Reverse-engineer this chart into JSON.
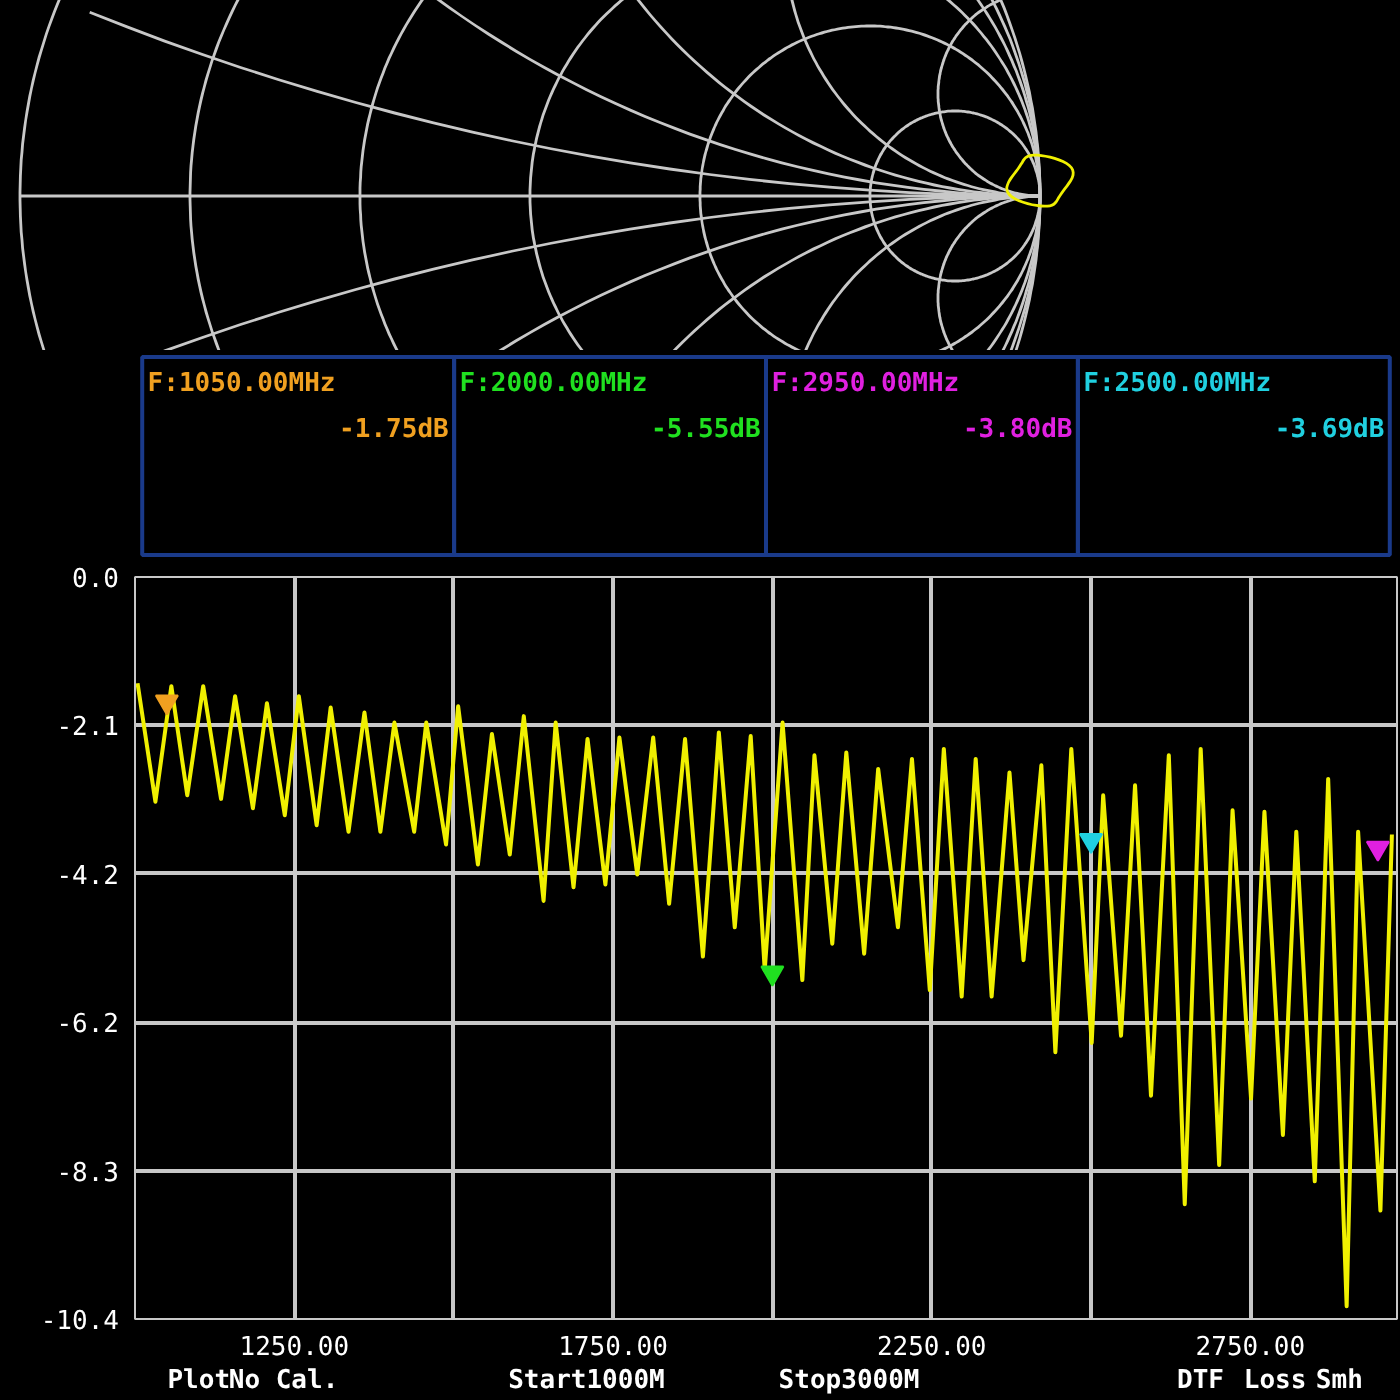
{
  "chart_data": {
    "type": "line",
    "xlim": [
      1000,
      2980
    ],
    "ylim": [
      -10.4,
      0
    ],
    "xticks": [
      {
        "value": 1000,
        "label": null
      },
      {
        "value": 1250,
        "label": "1250.00"
      },
      {
        "value": 1500,
        "label": null
      },
      {
        "value": 1750,
        "label": "1750.00"
      },
      {
        "value": 2000,
        "label": null
      },
      {
        "value": 2250,
        "label": "2250.00"
      },
      {
        "value": 2500,
        "label": null
      },
      {
        "value": 2750,
        "label": "2750.00"
      }
    ],
    "yticks": [
      {
        "value": 0,
        "label": "0.0"
      },
      {
        "value": -2.08,
        "label": "-2.1"
      },
      {
        "value": -4.16,
        "label": "-4.2"
      },
      {
        "value": -6.24,
        "label": "-6.2"
      },
      {
        "value": -8.32,
        "label": "-8.3"
      },
      {
        "value": -10.4,
        "label": "-10.4"
      }
    ],
    "grid": true,
    "series": [
      {
        "color": "#f0f000",
        "x": [
          1004,
          1032,
          1057,
          1082,
          1107,
          1135,
          1157,
          1185,
          1207,
          1235,
          1257,
          1285,
          1307,
          1335,
          1360,
          1385,
          1407,
          1438,
          1457,
          1488,
          1507,
          1538,
          1560,
          1588,
          1610,
          1641,
          1660,
          1688,
          1710,
          1738,
          1760,
          1788,
          1813,
          1838,
          1863,
          1891,
          1916,
          1941,
          1966,
          1988,
          2016,
          2047,
          2066,
          2094,
          2116,
          2144,
          2166,
          2197,
          2219,
          2247,
          2269,
          2297,
          2319,
          2344,
          2372,
          2394,
          2422,
          2444,
          2469,
          2501,
          2519,
          2547,
          2569,
          2594,
          2622,
          2647,
          2672,
          2701,
          2722,
          2751,
          2772,
          2801,
          2822,
          2851,
          2872,
          2901,
          2919,
          2954,
          2972
        ],
        "values": [
          -1.49,
          -3.15,
          -1.53,
          -3.06,
          -1.53,
          -3.11,
          -1.67,
          -3.24,
          -1.77,
          -3.34,
          -1.67,
          -3.48,
          -1.83,
          -3.57,
          -1.9,
          -3.57,
          -2.04,
          -3.57,
          -2.04,
          -3.75,
          -1.81,
          -4.03,
          -2.2,
          -3.89,
          -1.95,
          -4.54,
          -2.04,
          -4.35,
          -2.27,
          -4.31,
          -2.25,
          -4.17,
          -2.25,
          -4.58,
          -2.27,
          -5.32,
          -2.18,
          -4.91,
          -2.23,
          -5.51,
          -2.04,
          -5.65,
          -2.5,
          -5.14,
          -2.46,
          -5.28,
          -2.69,
          -4.91,
          -2.55,
          -5.79,
          -2.41,
          -5.88,
          -2.55,
          -5.88,
          -2.74,
          -5.37,
          -2.64,
          -6.66,
          -2.41,
          -6.53,
          -3.06,
          -6.43,
          -2.92,
          -7.27,
          -2.5,
          -8.79,
          -2.41,
          -8.24,
          -3.27,
          -7.31,
          -3.29,
          -7.82,
          -3.57,
          -8.47,
          -2.83,
          -10.22,
          -3.57,
          -8.88,
          -3.61
        ]
      },
      {
        "type": "scatter",
        "marker": "triangle",
        "x": [
          1050,
          2000,
          2950,
          2500
        ],
        "values": [
          -1.75,
          -5.55,
          -3.8,
          -3.69
        ],
        "colors": [
          "#f0a020",
          "#20e020",
          "#e020e0",
          "#20d0e0"
        ]
      }
    ],
    "annotations": [
      "F:1050.00MHz",
      "-1.75dB",
      "F:2000.00MHz",
      "-5.55dB",
      "F:2950.00MHz",
      "-3.80dB",
      "F:2500.00MHz",
      "-3.69dB",
      "Plot",
      "No Cal.",
      "Start1000M",
      "Stop3000M",
      "DTF",
      "Loss",
      "Smh"
    ]
  }
}
